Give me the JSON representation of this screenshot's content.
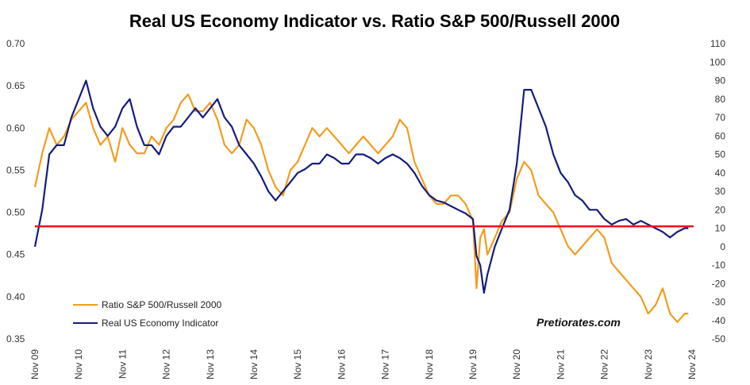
{
  "chart_data": {
    "type": "line",
    "title": "Real US Economy Indicator vs. Ratio S&P 500/Russell 2000",
    "x_ticks": [
      "Nov 09",
      "Nov 10",
      "Nov 11",
      "Nov 12",
      "Nov 13",
      "Nov 14",
      "Nov 15",
      "Nov 16",
      "Nov 17",
      "Nov 18",
      "Nov 19",
      "Nov 20",
      "Nov 21",
      "Nov 22",
      "Nov 23",
      "Nov 24"
    ],
    "y_left": {
      "ticks": [
        "0.70",
        "0.65",
        "0.60",
        "0.55",
        "0.50",
        "0.45",
        "0.40",
        "0.35"
      ],
      "range": [
        0.35,
        0.7
      ]
    },
    "y_right": {
      "ticks": [
        "110",
        "100",
        "90",
        "80",
        "70",
        "60",
        "50",
        "40",
        "30",
        "20",
        "10",
        "0",
        "-10",
        "-20",
        "-30",
        "-40",
        "-50"
      ],
      "range": [
        -50,
        110
      ]
    },
    "reference_line": {
      "axis": "right",
      "value": 11,
      "color": "#e8141b"
    },
    "legend_position": "bottom-left",
    "grid": false,
    "watermark": "Pretiorates.com",
    "series": [
      {
        "name": "Ratio S&P 500/Russell 2000",
        "axis": "left",
        "color": "#f39c1e",
        "points": [
          [
            "2009-11",
            0.53
          ],
          [
            "2010-01",
            0.57
          ],
          [
            "2010-03",
            0.6
          ],
          [
            "2010-05",
            0.58
          ],
          [
            "2010-07",
            0.59
          ],
          [
            "2010-09",
            0.61
          ],
          [
            "2010-11",
            0.62
          ],
          [
            "2011-01",
            0.63
          ],
          [
            "2011-03",
            0.6
          ],
          [
            "2011-05",
            0.58
          ],
          [
            "2011-07",
            0.59
          ],
          [
            "2011-09",
            0.56
          ],
          [
            "2011-11",
            0.6
          ],
          [
            "2012-01",
            0.58
          ],
          [
            "2012-03",
            0.57
          ],
          [
            "2012-05",
            0.57
          ],
          [
            "2012-07",
            0.59
          ],
          [
            "2012-09",
            0.58
          ],
          [
            "2012-11",
            0.6
          ],
          [
            "2013-01",
            0.61
          ],
          [
            "2013-03",
            0.63
          ],
          [
            "2013-05",
            0.64
          ],
          [
            "2013-07",
            0.62
          ],
          [
            "2013-09",
            0.62
          ],
          [
            "2013-11",
            0.63
          ],
          [
            "2014-01",
            0.61
          ],
          [
            "2014-03",
            0.58
          ],
          [
            "2014-05",
            0.57
          ],
          [
            "2014-07",
            0.58
          ],
          [
            "2014-09",
            0.61
          ],
          [
            "2014-11",
            0.6
          ],
          [
            "2015-01",
            0.58
          ],
          [
            "2015-03",
            0.55
          ],
          [
            "2015-05",
            0.53
          ],
          [
            "2015-07",
            0.52
          ],
          [
            "2015-09",
            0.55
          ],
          [
            "2015-11",
            0.56
          ],
          [
            "2016-01",
            0.58
          ],
          [
            "2016-03",
            0.6
          ],
          [
            "2016-05",
            0.59
          ],
          [
            "2016-07",
            0.6
          ],
          [
            "2016-09",
            0.59
          ],
          [
            "2016-11",
            0.58
          ],
          [
            "2017-01",
            0.57
          ],
          [
            "2017-03",
            0.58
          ],
          [
            "2017-05",
            0.59
          ],
          [
            "2017-07",
            0.58
          ],
          [
            "2017-09",
            0.57
          ],
          [
            "2017-11",
            0.58
          ],
          [
            "2018-01",
            0.59
          ],
          [
            "2018-03",
            0.61
          ],
          [
            "2018-05",
            0.6
          ],
          [
            "2018-07",
            0.56
          ],
          [
            "2018-09",
            0.54
          ],
          [
            "2018-11",
            0.52
          ],
          [
            "2019-01",
            0.51
          ],
          [
            "2019-03",
            0.51
          ],
          [
            "2019-05",
            0.52
          ],
          [
            "2019-07",
            0.52
          ],
          [
            "2019-09",
            0.51
          ],
          [
            "2019-11",
            0.49
          ],
          [
            "2019-12",
            0.41
          ],
          [
            "2020-01",
            0.47
          ],
          [
            "2020-02",
            0.48
          ],
          [
            "2020-03",
            0.45
          ],
          [
            "2020-05",
            0.47
          ],
          [
            "2020-07",
            0.49
          ],
          [
            "2020-09",
            0.5
          ],
          [
            "2020-11",
            0.54
          ],
          [
            "2021-01",
            0.56
          ],
          [
            "2021-03",
            0.55
          ],
          [
            "2021-05",
            0.52
          ],
          [
            "2021-07",
            0.51
          ],
          [
            "2021-09",
            0.5
          ],
          [
            "2021-11",
            0.48
          ],
          [
            "2022-01",
            0.46
          ],
          [
            "2022-03",
            0.45
          ],
          [
            "2022-05",
            0.46
          ],
          [
            "2022-07",
            0.47
          ],
          [
            "2022-09",
            0.48
          ],
          [
            "2022-11",
            0.47
          ],
          [
            "2023-01",
            0.44
          ],
          [
            "2023-03",
            0.43
          ],
          [
            "2023-05",
            0.42
          ],
          [
            "2023-07",
            0.41
          ],
          [
            "2023-09",
            0.4
          ],
          [
            "2023-11",
            0.38
          ],
          [
            "2024-01",
            0.39
          ],
          [
            "2024-03",
            0.41
          ],
          [
            "2024-05",
            0.38
          ],
          [
            "2024-07",
            0.37
          ],
          [
            "2024-09",
            0.38
          ],
          [
            "2024-10",
            0.38
          ]
        ]
      },
      {
        "name": "Real US Economy Indicator",
        "axis": "right",
        "color": "#141d7c",
        "points": [
          [
            "2009-11",
            0
          ],
          [
            "2010-01",
            20
          ],
          [
            "2010-03",
            50
          ],
          [
            "2010-05",
            55
          ],
          [
            "2010-07",
            55
          ],
          [
            "2010-09",
            70
          ],
          [
            "2010-11",
            80
          ],
          [
            "2011-01",
            90
          ],
          [
            "2011-03",
            75
          ],
          [
            "2011-05",
            65
          ],
          [
            "2011-07",
            60
          ],
          [
            "2011-09",
            65
          ],
          [
            "2011-11",
            75
          ],
          [
            "2012-01",
            80
          ],
          [
            "2012-03",
            65
          ],
          [
            "2012-05",
            55
          ],
          [
            "2012-07",
            55
          ],
          [
            "2012-09",
            50
          ],
          [
            "2012-11",
            60
          ],
          [
            "2013-01",
            65
          ],
          [
            "2013-03",
            65
          ],
          [
            "2013-05",
            70
          ],
          [
            "2013-07",
            75
          ],
          [
            "2013-09",
            70
          ],
          [
            "2013-11",
            75
          ],
          [
            "2014-01",
            80
          ],
          [
            "2014-03",
            70
          ],
          [
            "2014-05",
            65
          ],
          [
            "2014-07",
            55
          ],
          [
            "2014-09",
            50
          ],
          [
            "2014-11",
            45
          ],
          [
            "2015-01",
            38
          ],
          [
            "2015-03",
            30
          ],
          [
            "2015-05",
            25
          ],
          [
            "2015-07",
            30
          ],
          [
            "2015-09",
            35
          ],
          [
            "2015-11",
            40
          ],
          [
            "2016-01",
            42
          ],
          [
            "2016-03",
            45
          ],
          [
            "2016-05",
            45
          ],
          [
            "2016-07",
            50
          ],
          [
            "2016-09",
            48
          ],
          [
            "2016-11",
            45
          ],
          [
            "2017-01",
            45
          ],
          [
            "2017-03",
            50
          ],
          [
            "2017-05",
            50
          ],
          [
            "2017-07",
            48
          ],
          [
            "2017-09",
            45
          ],
          [
            "2017-11",
            48
          ],
          [
            "2018-01",
            50
          ],
          [
            "2018-03",
            48
          ],
          [
            "2018-05",
            45
          ],
          [
            "2018-07",
            40
          ],
          [
            "2018-09",
            33
          ],
          [
            "2018-11",
            28
          ],
          [
            "2019-01",
            25
          ],
          [
            "2019-03",
            24
          ],
          [
            "2019-05",
            22
          ],
          [
            "2019-07",
            20
          ],
          [
            "2019-09",
            18
          ],
          [
            "2019-11",
            15
          ],
          [
            "2019-12",
            -5
          ],
          [
            "2020-01",
            -10
          ],
          [
            "2020-02",
            -25
          ],
          [
            "2020-03",
            -15
          ],
          [
            "2020-05",
            0
          ],
          [
            "2020-07",
            10
          ],
          [
            "2020-09",
            20
          ],
          [
            "2020-11",
            45
          ],
          [
            "2021-01",
            85
          ],
          [
            "2021-03",
            85
          ],
          [
            "2021-05",
            75
          ],
          [
            "2021-07",
            65
          ],
          [
            "2021-09",
            50
          ],
          [
            "2021-11",
            40
          ],
          [
            "2022-01",
            35
          ],
          [
            "2022-03",
            28
          ],
          [
            "2022-05",
            25
          ],
          [
            "2022-07",
            20
          ],
          [
            "2022-09",
            20
          ],
          [
            "2022-11",
            15
          ],
          [
            "2023-01",
            12
          ],
          [
            "2023-03",
            14
          ],
          [
            "2023-05",
            15
          ],
          [
            "2023-07",
            12
          ],
          [
            "2023-09",
            14
          ],
          [
            "2023-11",
            12
          ],
          [
            "2024-01",
            10
          ],
          [
            "2024-03",
            8
          ],
          [
            "2024-05",
            5
          ],
          [
            "2024-07",
            8
          ],
          [
            "2024-09",
            10
          ],
          [
            "2024-10",
            10
          ]
        ]
      }
    ]
  }
}
